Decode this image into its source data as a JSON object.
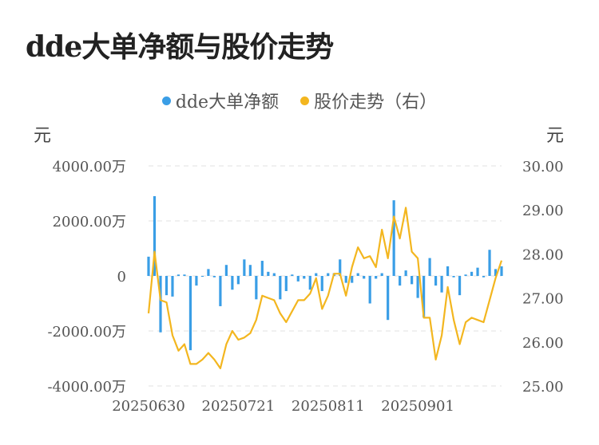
{
  "title": "dde大单净额与股价走势",
  "colors": {
    "bar": "#3a9ee6",
    "line": "#f3b61f",
    "grid": "#e6e6e6"
  },
  "chart_data": {
    "type": "bar+line",
    "title": "dde大单净额与股价走势",
    "left_unit": "元",
    "right_unit": "元",
    "legend_position": "top-center",
    "grid": true,
    "left_axis": {
      "min": -4000,
      "max": 4000,
      "ticks": [
        4000,
        2000,
        0,
        -2000,
        -4000
      ],
      "tick_labels": [
        "4000.00万",
        "2000.00万",
        "0",
        "-2000.00万",
        "-4000.00万"
      ]
    },
    "right_axis": {
      "min": 25,
      "max": 30,
      "ticks": [
        30,
        29,
        28,
        27,
        26,
        25
      ],
      "tick_labels": [
        "30.00",
        "29.00",
        "28.00",
        "27.00",
        "26.00",
        "25.00"
      ]
    },
    "x_tick_labels": [
      {
        "index": 0,
        "label": "20250630"
      },
      {
        "index": 15,
        "label": "20250721"
      },
      {
        "index": 30,
        "label": "20250811"
      },
      {
        "index": 45,
        "label": "20250901"
      }
    ],
    "series": [
      {
        "name": "dde大单净额",
        "type": "bar",
        "axis": "left",
        "unit": "万",
        "values": [
          700,
          2900,
          -2050,
          -700,
          -750,
          50,
          50,
          -2700,
          -350,
          0,
          250,
          -50,
          -1100,
          400,
          -500,
          -300,
          600,
          400,
          -850,
          550,
          150,
          100,
          -850,
          -550,
          50,
          -200,
          -100,
          -500,
          100,
          -550,
          100,
          100,
          600,
          -250,
          -250,
          100,
          -100,
          -1000,
          -100,
          100,
          -1600,
          2750,
          -350,
          200,
          -300,
          -800,
          -1500,
          650,
          -350,
          -600,
          350,
          -50,
          -700,
          50,
          150,
          300,
          -50,
          950,
          250,
          350
        ]
      },
      {
        "name": "股价走势（右）",
        "type": "line",
        "axis": "right",
        "values": [
          26.65,
          28.05,
          26.95,
          26.9,
          26.15,
          25.8,
          25.95,
          25.5,
          25.5,
          25.6,
          25.75,
          25.6,
          25.4,
          25.95,
          26.25,
          26.05,
          26.1,
          26.2,
          26.5,
          27.05,
          27.0,
          26.95,
          26.65,
          26.45,
          26.7,
          26.95,
          26.95,
          27.1,
          27.45,
          26.75,
          27.05,
          27.55,
          27.55,
          27.05,
          27.7,
          28.15,
          27.9,
          27.95,
          27.7,
          28.55,
          27.9,
          28.85,
          28.35,
          29.05,
          28.05,
          27.9,
          26.55,
          26.55,
          25.6,
          26.15,
          27.25,
          26.5,
          25.95,
          26.45,
          26.55,
          26.5,
          26.45,
          26.95,
          27.45,
          27.85
        ]
      }
    ]
  }
}
